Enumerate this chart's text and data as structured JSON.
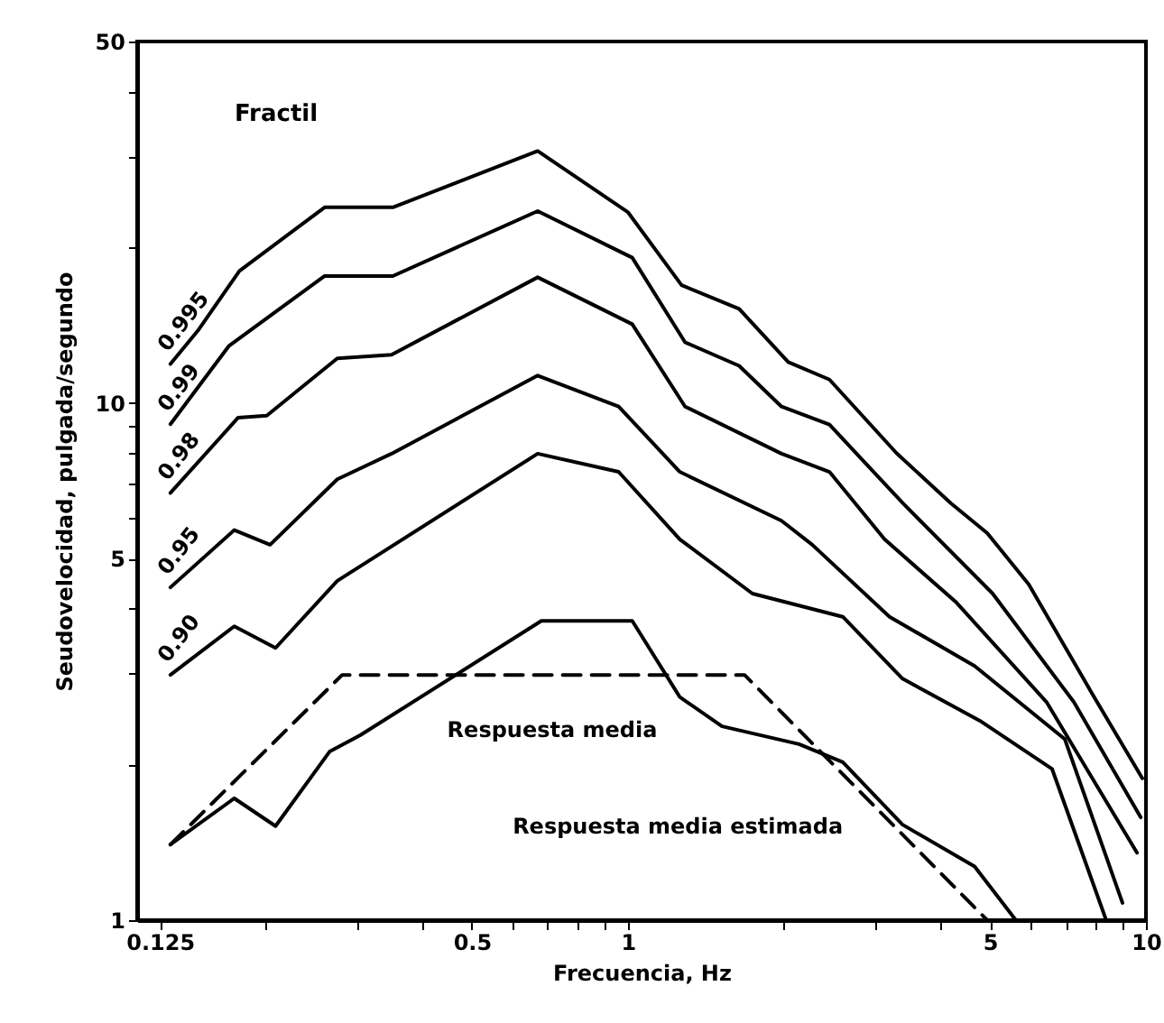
{
  "chart_data": {
    "type": "line",
    "xlabel": "Frecuencia, Hz",
    "ylabel": "Seudovelocidad, pulgada/segundo",
    "log": "xy",
    "grid": false,
    "marker": "none",
    "xlim": [
      0.113,
      10
    ],
    "ylim": [
      1,
      50
    ],
    "xticks": [
      0.125,
      {
        "value": 0.2,
        "label": null
      },
      {
        "value": 0.3,
        "label": null
      },
      {
        "value": 0.4,
        "label": null
      },
      0.5,
      {
        "value": 0.6,
        "label": null
      },
      {
        "value": 0.7,
        "label": null
      },
      {
        "value": 0.8,
        "label": null
      },
      {
        "value": 0.9,
        "label": null
      },
      1,
      {
        "value": 2,
        "label": null
      },
      {
        "value": 3,
        "label": null
      },
      {
        "value": 4,
        "label": null
      },
      5,
      {
        "value": 6,
        "label": null
      },
      {
        "value": 7,
        "label": null
      },
      {
        "value": 8,
        "label": null
      },
      {
        "value": 9,
        "label": null
      },
      10
    ],
    "yticks": [
      1,
      {
        "value": 2,
        "label": null
      },
      {
        "value": 3,
        "label": null
      },
      {
        "value": 4,
        "label": null
      },
      5,
      {
        "value": 6,
        "label": null
      },
      {
        "value": 7,
        "label": null
      },
      {
        "value": 8,
        "label": null
      },
      {
        "value": 9,
        "label": null
      },
      10,
      {
        "value": 20,
        "label": null
      },
      {
        "value": 30,
        "label": null
      },
      {
        "value": 40,
        "label": null
      },
      50
    ],
    "annotations": [
      "Fractil"
    ],
    "series": [
      {
        "name": "0.995",
        "color": "#000000",
        "line_style": "solid",
        "x": [
          0.131,
          0.148,
          0.178,
          0.26,
          0.352,
          0.67,
          1,
          1.27,
          1.64,
          2.04,
          2.45,
          3.3,
          4.2,
          4.94,
          5.94,
          7.86,
          9.84
        ],
        "values": [
          11.9,
          13.8,
          18.0,
          23.9,
          23.9,
          30.7,
          23.4,
          16.9,
          15.2,
          12.0,
          11.1,
          8.0,
          6.4,
          5.6,
          4.46,
          2.75,
          1.88
        ]
      },
      {
        "name": "0.99",
        "color": "#000000",
        "line_style": "solid",
        "x": [
          0.131,
          0.17,
          0.26,
          0.352,
          0.67,
          1.02,
          1.29,
          1.64,
          1.98,
          2.45,
          3.39,
          5.06,
          7.26,
          9.77
        ],
        "values": [
          9.1,
          12.9,
          17.6,
          17.6,
          23.5,
          19.1,
          13.1,
          11.8,
          9.84,
          9.08,
          6.41,
          4.28,
          2.64,
          1.58
        ]
      },
      {
        "name": "0.98",
        "color": "#000000",
        "line_style": "solid",
        "x": [
          0.131,
          0.177,
          0.201,
          0.275,
          0.35,
          0.67,
          1.02,
          1.29,
          1.98,
          2.45,
          3.13,
          4.31,
          6.43,
          9.61
        ],
        "values": [
          6.7,
          9.37,
          9.45,
          12.2,
          12.4,
          17.5,
          14.2,
          9.84,
          7.98,
          7.36,
          5.45,
          4.11,
          2.64,
          1.35
        ]
      },
      {
        "name": "0.95",
        "color": "#000000",
        "line_style": "solid",
        "x": [
          0.131,
          0.174,
          0.204,
          0.275,
          0.35,
          0.67,
          0.96,
          1.26,
          1.98,
          2.27,
          3.2,
          4.67,
          6.97,
          9.01
        ],
        "values": [
          4.4,
          5.68,
          5.32,
          7.12,
          7.98,
          11.3,
          9.84,
          7.36,
          5.92,
          5.32,
          3.86,
          3.1,
          2.24,
          1.08
        ]
      },
      {
        "name": "0.90",
        "color": "#000000",
        "line_style": "solid",
        "x": [
          0.131,
          0.174,
          0.209,
          0.275,
          0.67,
          0.96,
          1.26,
          1.74,
          2.6,
          3.39,
          4.78,
          6.59,
          8.38
        ],
        "values": [
          2.98,
          3.7,
          3.36,
          4.53,
          7.98,
          7.36,
          5.45,
          4.28,
          3.86,
          2.93,
          2.43,
          1.96,
          1.0
        ]
      },
      {
        "name": "Respuesta media",
        "color": "#000000",
        "line_style": "solid",
        "x": [
          0.131,
          0.174,
          0.209,
          0.266,
          0.305,
          0.681,
          1.02,
          1.26,
          1.52,
          2.14,
          2.6,
          3.39,
          4.67,
          5.61
        ],
        "values": [
          1.4,
          1.72,
          1.52,
          2.12,
          2.28,
          3.79,
          3.79,
          2.7,
          2.37,
          2.19,
          2.02,
          1.53,
          1.27,
          1.0
        ]
      },
      {
        "name": "Respuesta media estimada",
        "color": "#000000",
        "line_style": "dashed",
        "x": [
          0.131,
          0.281,
          1.68,
          4.94
        ],
        "values": [
          1.4,
          2.98,
          2.98,
          1.0
        ]
      }
    ]
  }
}
